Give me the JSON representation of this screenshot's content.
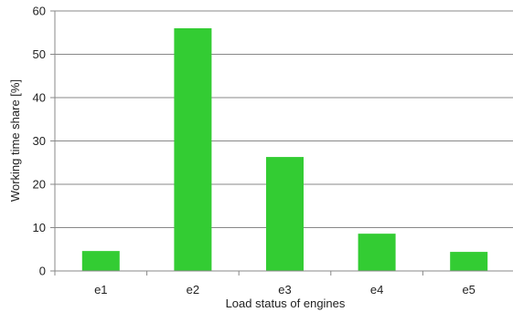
{
  "chart_data": {
    "type": "bar",
    "categories": [
      "e1",
      "e2",
      "e3",
      "e4",
      "e5"
    ],
    "values": [
      4.6,
      56,
      26.3,
      8.6,
      4.4
    ],
    "xlabel": "Load status of engines",
    "ylabel": "Working time share [%]",
    "ylim": [
      0,
      60
    ],
    "yticks": [
      0,
      10,
      20,
      30,
      40,
      50,
      60
    ],
    "grid": true,
    "legend": "none",
    "bar_color": "#33cc33",
    "grid_color": "#888888"
  }
}
